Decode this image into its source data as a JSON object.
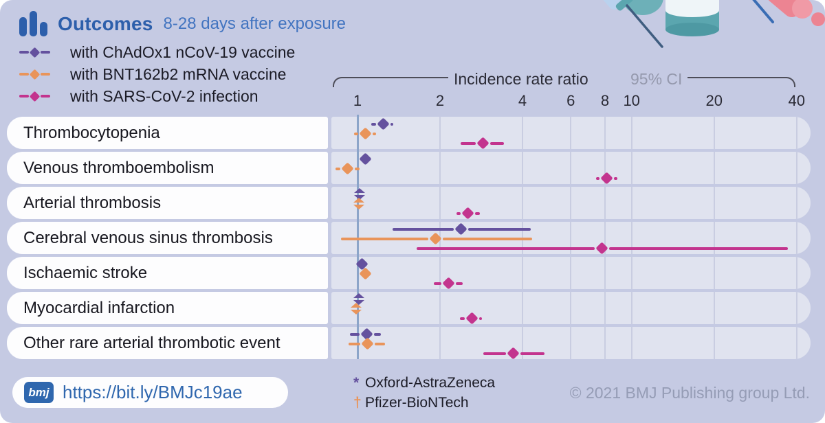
{
  "header": {
    "title": "Outcomes",
    "subtitle": "8-28 days after exposure",
    "title_color": "#2d5fab",
    "subtitle_color": "#4274c0"
  },
  "legend": [
    {
      "label": "with ChAdOx1 nCoV-19 vaccine",
      "color": "#64519e"
    },
    {
      "label": "with BNT162b2 mRNA vaccine",
      "color": "#e9945a"
    },
    {
      "label": "with SARS-CoV-2 infection",
      "color": "#c3348e"
    }
  ],
  "axis": {
    "label": "Incidence rate ratio",
    "ci_label": "95% CI"
  },
  "outcome_labels": [
    "Thrombocytopenia",
    "Venous thromboembolism",
    "Arterial thrombosis",
    "Cerebral venous sinus thrombosis",
    "Ischaemic stroke",
    "Myocardial infarction",
    "Other rare arterial thrombotic event"
  ],
  "footer": {
    "url": "https://bit.ly/BMJc19ae",
    "logo_text": "bmj",
    "footnotes": [
      {
        "symbol": "*",
        "text": "Oxford-AstraZeneca",
        "color": "#64519e"
      },
      {
        "symbol": "†",
        "text": "Pfizer-BioNTech",
        "color": "#e9945a"
      }
    ],
    "copyright": "© 2021 BMJ Publishing group Ltd."
  },
  "colors": {
    "background": "#c5cae3",
    "band": "#e0e3ef",
    "gridline": "#c9cde1",
    "reference_line": "#8ca5c9",
    "bracket": "#4d4d58"
  },
  "chart_data": {
    "type": "scatter",
    "variant": "forest-plot",
    "title": "Outcomes 8-28 days after exposure",
    "xlabel": "Incidence rate ratio (95% CI)",
    "x_scale": "log",
    "x_ticks": [
      1,
      2,
      4,
      6,
      8,
      10,
      20,
      40
    ],
    "x_range": [
      0.8,
      45
    ],
    "reference_line": 1,
    "grid": "vertical-at-ticks",
    "legend_position": "top-left",
    "categories": [
      "Thrombocytopenia",
      "Venous thromboembolism",
      "Arterial thrombosis",
      "Cerebral venous sinus thrombosis",
      "Ischaemic stroke",
      "Myocardial infarction",
      "Other rare arterial thrombotic event"
    ],
    "series": [
      {
        "name": "with ChAdOx1 nCoV-19 vaccine",
        "color": "#64519e",
        "points": [
          {
            "est": 1.24,
            "lo": 1.12,
            "hi": 1.35,
            "marker": "diamond"
          },
          {
            "est": 1.07,
            "lo": 1.02,
            "hi": 1.13,
            "marker": "diamond"
          },
          {
            "est": 1.02,
            "lo": 0.99,
            "hi": 1.05,
            "marker": "split"
          },
          {
            "est": 2.38,
            "lo": 1.34,
            "hi": 4.28,
            "marker": "diamond"
          },
          {
            "est": 1.04,
            "lo": 0.99,
            "hi": 1.09,
            "marker": "diamond"
          },
          {
            "est": 1.01,
            "lo": 0.98,
            "hi": 1.04,
            "marker": "split"
          },
          {
            "est": 1.08,
            "lo": 0.94,
            "hi": 1.22,
            "marker": "diamond"
          }
        ]
      },
      {
        "name": "with BNT162b2 mRNA vaccine",
        "color": "#e9945a",
        "points": [
          {
            "est": 1.07,
            "lo": 0.97,
            "hi": 1.17,
            "marker": "diamond"
          },
          {
            "est": 0.92,
            "lo": 0.83,
            "hi": 1.02,
            "marker": "diamond"
          },
          {
            "est": 1.01,
            "lo": 0.98,
            "hi": 1.04,
            "marker": "split"
          },
          {
            "est": 1.93,
            "lo": 0.87,
            "hi": 4.33,
            "marker": "diamond"
          },
          {
            "est": 1.07,
            "lo": 1.01,
            "hi": 1.13,
            "marker": "diamond"
          },
          {
            "est": 0.99,
            "lo": 0.96,
            "hi": 1.02,
            "marker": "split"
          },
          {
            "est": 1.09,
            "lo": 0.93,
            "hi": 1.26,
            "marker": "diamond"
          }
        ]
      },
      {
        "name": "with SARS-CoV-2 infection",
        "color": "#c3348e",
        "points": [
          {
            "est": 2.87,
            "lo": 2.38,
            "hi": 3.42,
            "marker": "diamond"
          },
          {
            "est": 8.1,
            "lo": 7.4,
            "hi": 8.85,
            "marker": "diamond"
          },
          {
            "est": 2.53,
            "lo": 2.3,
            "hi": 2.8,
            "marker": "diamond"
          },
          {
            "est": 7.8,
            "lo": 1.64,
            "hi": 37.2,
            "marker": "diamond"
          },
          {
            "est": 2.15,
            "lo": 1.9,
            "hi": 2.42,
            "marker": "diamond"
          },
          {
            "est": 2.61,
            "lo": 2.36,
            "hi": 2.85,
            "marker": "diamond"
          },
          {
            "est": 3.7,
            "lo": 2.88,
            "hi": 4.82,
            "marker": "diamond"
          }
        ]
      }
    ]
  }
}
